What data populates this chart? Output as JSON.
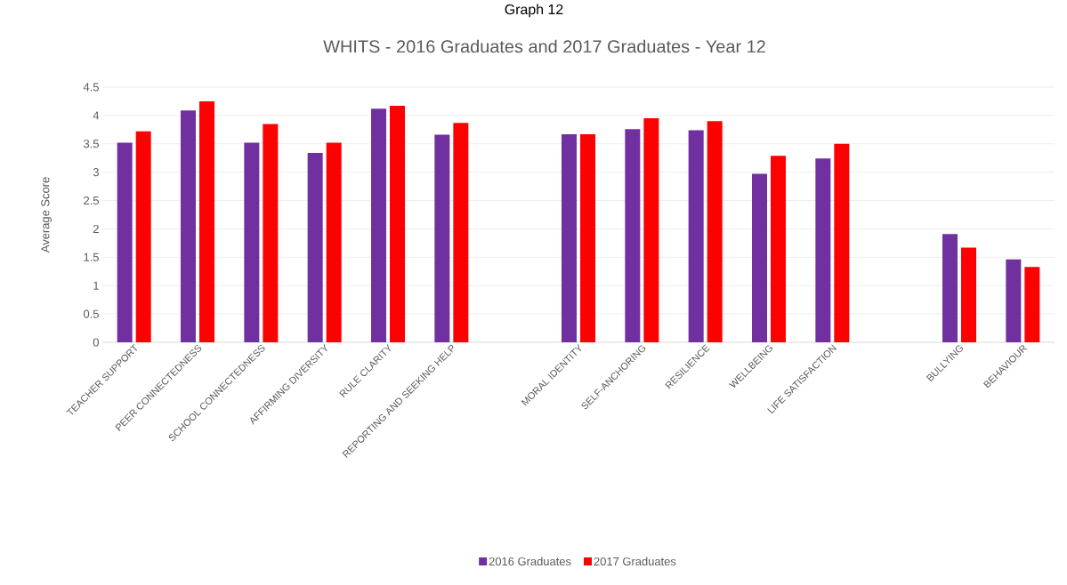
{
  "chart_data": {
    "type": "bar",
    "title": "WHITS - 2016 Graduates and 2017 Graduates - Year 12",
    "ylabel": "Average Score",
    "annotations": [
      "Graph 12"
    ],
    "categories": [
      "TEACHER SUPPORT",
      "PEER CONNECTEDNESS",
      "SCHOOL CONNECTEDNESS",
      "AFFIRMING DIVERSITY",
      "RULE CLARITY",
      "REPORTING AND SEEKING HELP",
      null,
      "MORAL IDENTITY",
      "SELF-ANCHORING",
      "RESILIENCE",
      "WELLBEING",
      "LIFE SATISFACTION",
      null,
      "BULLYING",
      "BEHAVIOUR"
    ],
    "series": [
      {
        "name": "2016 Graduates",
        "color": "#7030a0",
        "values": [
          3.52,
          4.09,
          3.52,
          3.34,
          4.12,
          3.66,
          null,
          3.67,
          3.76,
          3.74,
          2.97,
          3.24,
          null,
          1.91,
          1.46
        ]
      },
      {
        "name": "2017 Graduates",
        "color": "#ff0000",
        "values": [
          3.72,
          4.25,
          3.85,
          3.52,
          4.17,
          3.87,
          null,
          3.67,
          3.95,
          3.9,
          3.29,
          3.5,
          null,
          1.67,
          1.33
        ]
      }
    ],
    "ylim": [
      0,
      4.5
    ],
    "yticks": [
      0,
      0.5,
      1,
      1.5,
      2,
      2.5,
      3,
      3.5,
      4,
      4.5
    ],
    "grid": "y",
    "legend": "bottom"
  }
}
